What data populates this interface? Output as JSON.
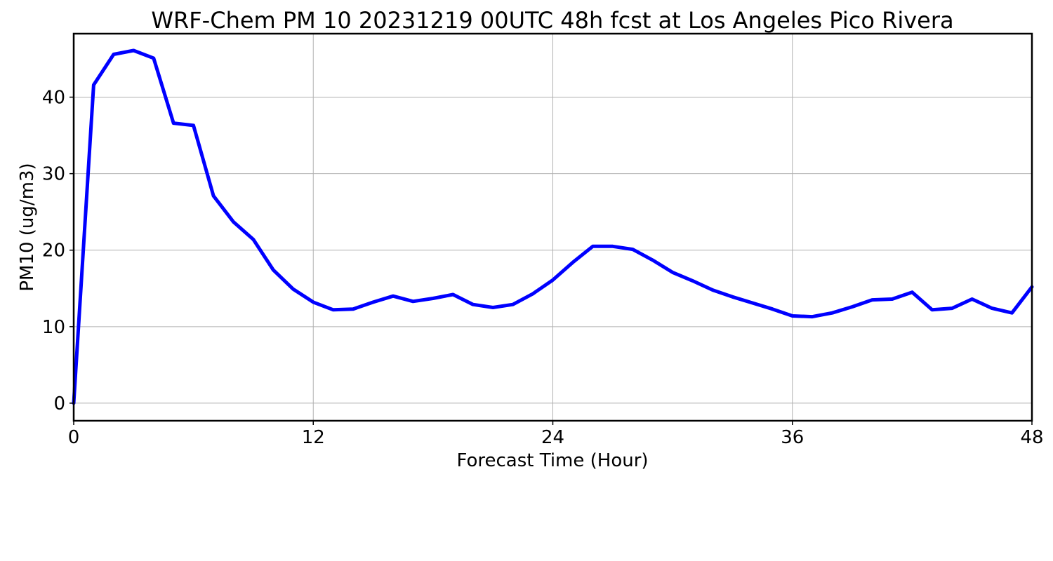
{
  "chart_data": {
    "type": "line",
    "title": "WRF-Chem PM 10  20231219 00UTC 48h fcst at Los Angeles Pico Rivera",
    "xlabel": "Forecast Time (Hour)",
    "ylabel": "PM10  (ug/m3)",
    "xlim": [
      0,
      48
    ],
    "ylim": [
      -2.3,
      48.3
    ],
    "xticks": [
      0,
      12,
      24,
      36,
      48
    ],
    "yticks": [
      0,
      10,
      20,
      30,
      40
    ],
    "grid": true,
    "series": [
      {
        "color": "#0000ff",
        "x": [
          0,
          1,
          2,
          3,
          4,
          5,
          6,
          7,
          8,
          9,
          10,
          11,
          12,
          13,
          14,
          15,
          16,
          17,
          18,
          19,
          20,
          21,
          22,
          23,
          24,
          25,
          26,
          27,
          28,
          29,
          30,
          31,
          32,
          33,
          34,
          35,
          36,
          37,
          38,
          39,
          40,
          41,
          42,
          43,
          44,
          45,
          46,
          47,
          48
        ],
        "values": [
          0,
          41.6,
          45.6,
          46.1,
          45.1,
          36.6,
          36.3,
          27.1,
          23.7,
          21.4,
          17.4,
          14.9,
          13.2,
          12.2,
          12.3,
          13.2,
          14.0,
          13.3,
          13.7,
          14.2,
          12.9,
          12.5,
          12.9,
          14.3,
          16.1,
          18.4,
          20.5,
          20.5,
          20.1,
          18.7,
          17.1,
          16.0,
          14.8,
          13.9,
          13.1,
          12.3,
          11.4,
          11.3,
          11.8,
          12.6,
          13.5,
          13.6,
          14.5,
          12.2,
          12.4,
          13.6,
          12.4,
          11.8,
          15.2
        ]
      }
    ]
  }
}
